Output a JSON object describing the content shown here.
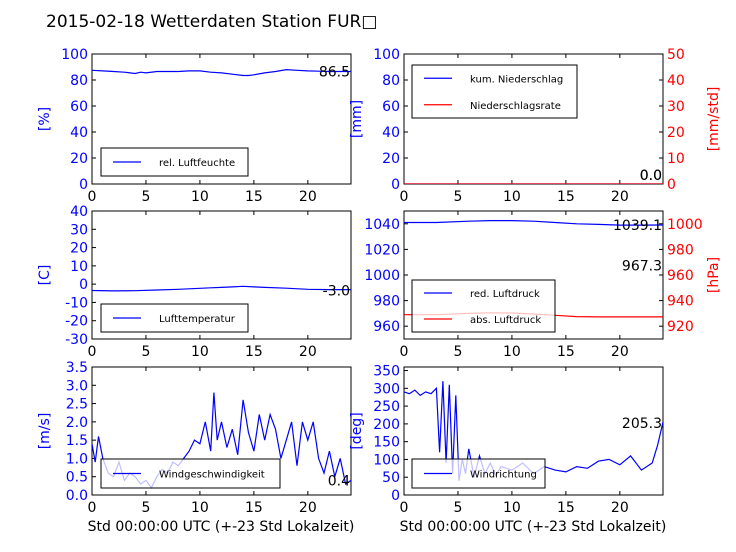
{
  "figure": {
    "title": "2015-02-18 Wetterdaten Station FUR□",
    "xlabel": "Std 00:00:00 UTC (+-23 Std Lokalzeit)"
  },
  "colors": {
    "blue": "#0000ff",
    "red": "#ff0000",
    "light_blue": "#8c8cff"
  },
  "chart_data": [
    {
      "id": "humidity",
      "type": "line",
      "ylabel": "[%]",
      "xlim": [
        0,
        24
      ],
      "ylim": [
        0,
        100
      ],
      "yticks": [
        0,
        20,
        40,
        60,
        80,
        100
      ],
      "xticks": [
        0,
        5,
        10,
        15,
        20
      ],
      "value_label": "86.5",
      "legend_position": "lower-left",
      "series": [
        {
          "name": "rel. Luftfeuchte",
          "color": "#0000ff",
          "x": [
            0,
            1,
            2,
            3,
            4,
            4.5,
            5,
            6,
            7,
            8,
            9,
            10,
            11,
            12,
            13,
            14,
            14.5,
            15,
            16,
            17,
            18,
            19,
            20,
            21,
            22,
            23,
            24
          ],
          "y": [
            87.5,
            87,
            86.5,
            86,
            85,
            86,
            85.5,
            86.5,
            86.5,
            86.5,
            87,
            87,
            86,
            85.5,
            84.5,
            83.5,
            83.5,
            84,
            85.5,
            86.5,
            88,
            87.5,
            87,
            86.8,
            86.5,
            86.5,
            86.5
          ]
        }
      ]
    },
    {
      "id": "precip",
      "type": "line",
      "ylabel": "[mm]",
      "ylabel_right": "[mm/std]",
      "xlim": [
        0,
        24
      ],
      "ylim": [
        0,
        100
      ],
      "ylim_right": [
        0,
        50
      ],
      "yticks": [
        0,
        20,
        40,
        60,
        80,
        100
      ],
      "yticks_right": [
        0,
        10,
        20,
        30,
        40,
        50
      ],
      "xticks": [
        0,
        5,
        10,
        15,
        20
      ],
      "value_label": "0.0",
      "value_label_right": "0.0",
      "legend_position": "upper-left",
      "series": [
        {
          "name": "kum. Niederschlag",
          "color": "#0000ff",
          "x": [
            0,
            24
          ],
          "y": [
            0,
            0
          ]
        },
        {
          "name": "Niederschlagsrate",
          "color": "#ff0000",
          "x": [
            0,
            24
          ],
          "y": [
            0,
            0
          ]
        }
      ]
    },
    {
      "id": "temp",
      "type": "line",
      "ylabel": "[C]",
      "xlim": [
        0,
        24
      ],
      "ylim": [
        -30,
        40
      ],
      "yticks": [
        -30,
        -20,
        -10,
        0,
        10,
        20,
        30,
        40
      ],
      "xticks": [
        0,
        5,
        10,
        15,
        20
      ],
      "value_label": "-3.0",
      "legend_position": "lower-left",
      "series": [
        {
          "name": "Lufttemperatur",
          "color": "#0000ff",
          "x": [
            0,
            2,
            4,
            6,
            8,
            10,
            11,
            12,
            13,
            14,
            15,
            16,
            18,
            20,
            22,
            24
          ],
          "y": [
            -3.5,
            -3.7,
            -3.6,
            -3.2,
            -2.8,
            -2.3,
            -2.0,
            -1.8,
            -1.5,
            -1.2,
            -1.5,
            -1.8,
            -2.2,
            -2.8,
            -3.0,
            -3.0
          ]
        }
      ]
    },
    {
      "id": "pressure",
      "type": "line",
      "ylabel_right": "[hPa]",
      "xlim": [
        0,
        24
      ],
      "ylim": [
        950,
        1050
      ],
      "ylim_right": [
        910,
        1010
      ],
      "yticks": [
        960,
        980,
        1000,
        1020,
        1040
      ],
      "yticks_right": [
        920,
        940,
        960,
        980,
        1000
      ],
      "xticks": [
        0,
        5,
        10,
        15,
        20
      ],
      "value_label": "1039.1",
      "value_label_right": "967.3",
      "legend_position": "lower-left",
      "series": [
        {
          "name": "red. Luftdruck",
          "color": "#0000ff",
          "x": [
            0,
            3,
            6,
            8,
            10,
            12,
            14,
            16,
            18,
            20,
            22,
            24
          ],
          "y": [
            1041,
            1041,
            1042,
            1042.5,
            1042.5,
            1042,
            1041,
            1040,
            1039.5,
            1039,
            1039,
            1039.1
          ]
        },
        {
          "name": "abs. Luftdruck",
          "color": "#ff0000",
          "x": [
            0,
            3,
            6,
            8,
            10,
            12,
            14,
            16,
            18,
            20,
            22,
            24
          ],
          "y": [
            969,
            969,
            970,
            970.5,
            970.3,
            969.5,
            968.5,
            967.5,
            967.3,
            967.3,
            967.3,
            967.3
          ]
        }
      ]
    },
    {
      "id": "wind_speed",
      "type": "line",
      "ylabel": "[m/s]",
      "xlim": [
        0,
        24
      ],
      "ylim": [
        0,
        3.5
      ],
      "yticks": [
        0.0,
        0.5,
        1.0,
        1.5,
        2.0,
        2.5,
        3.0,
        3.5
      ],
      "xticks": [
        0,
        5,
        10,
        15,
        20
      ],
      "value_label": "0.4",
      "legend_position": "lower-left",
      "series": [
        {
          "name": "Windgeschwindigkeit",
          "color": "#0000ff",
          "x": [
            0,
            0.3,
            0.6,
            1,
            1.5,
            2,
            2.5,
            3,
            3.5,
            4,
            4.5,
            5,
            5.5,
            6,
            6.5,
            7,
            7.5,
            8,
            8.5,
            9,
            9.5,
            10,
            10.5,
            11,
            11.3,
            11.6,
            12,
            12.5,
            13,
            13.5,
            14,
            14.5,
            15,
            15.5,
            16,
            16.5,
            17,
            17.5,
            18,
            18.5,
            19,
            19.5,
            20,
            20.5,
            21,
            21.5,
            22,
            22.5,
            23,
            23.5,
            24
          ],
          "y": [
            1.4,
            0.9,
            1.6,
            1.0,
            0.6,
            0.5,
            0.9,
            0.4,
            0.6,
            0.5,
            0.3,
            0.4,
            0.2,
            0.5,
            0.7,
            0.6,
            0.9,
            0.8,
            1.0,
            1.2,
            1.5,
            1.4,
            2.0,
            1.2,
            2.8,
            1.5,
            2.0,
            1.3,
            1.8,
            1.1,
            2.6,
            1.7,
            1.2,
            2.2,
            1.5,
            2.2,
            1.8,
            1.0,
            1.5,
            2.0,
            0.8,
            2.0,
            1.5,
            2.0,
            1.0,
            0.6,
            1.2,
            0.5,
            1.0,
            0.3,
            0.4
          ]
        }
      ]
    },
    {
      "id": "wind_dir",
      "type": "line",
      "ylabel": "[deg]",
      "xlim": [
        0,
        24
      ],
      "ylim": [
        0,
        360
      ],
      "yticks": [
        0,
        50,
        100,
        150,
        200,
        250,
        300,
        350
      ],
      "xticks": [
        0,
        5,
        10,
        15,
        20
      ],
      "value_label": "205.3",
      "legend_position": "lower-left",
      "series": [
        {
          "name": "Windrichtung",
          "color": "#0000ff",
          "x": [
            0,
            0.5,
            1,
            1.5,
            2,
            2.5,
            3,
            3.3,
            3.6,
            3.9,
            4.2,
            4.5,
            4.8,
            5.1,
            5.4,
            5.7,
            6,
            6.5,
            7,
            7.5,
            8,
            8.5,
            9,
            10,
            11,
            12,
            13,
            14,
            15,
            16,
            17,
            18,
            19,
            20,
            21,
            22,
            23,
            23.5,
            24
          ],
          "y": [
            290,
            285,
            295,
            280,
            290,
            285,
            300,
            120,
            320,
            90,
            310,
            60,
            280,
            40,
            100,
            60,
            130,
            50,
            110,
            60,
            90,
            55,
            80,
            70,
            90,
            60,
            80,
            70,
            65,
            80,
            75,
            95,
            100,
            85,
            110,
            70,
            90,
            140,
            205.3
          ]
        }
      ]
    }
  ]
}
